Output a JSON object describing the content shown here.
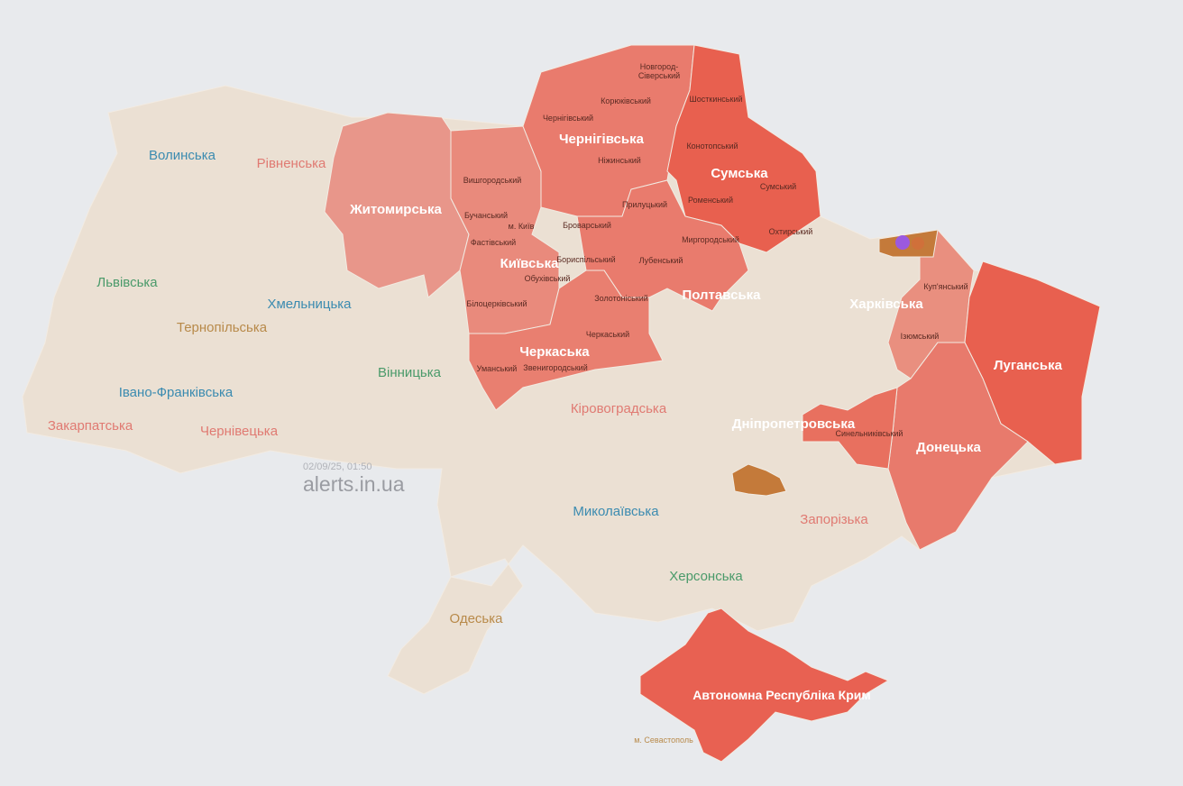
{
  "colors": {
    "background": "#e8eaed",
    "no_alert": "#ebe0d3",
    "alert_light": "#e8968a",
    "alert_medium": "#e97b6d",
    "alert_strong": "#e8604f",
    "threat_orange": "#c47a3a",
    "drone_marker": "#9b59e0"
  },
  "watermark": {
    "timestamp": "02/09/25, 01:50",
    "site": "alerts.in.ua"
  },
  "oblasts_no_alert": {
    "volynska": "Волинська",
    "rivnenska": "Рівненська",
    "lvivska": "Львівська",
    "khmelnytska": "Хмельницька",
    "ternopilska": "Тернопільська",
    "vinnytska": "Вінницька",
    "ivano_frankivska": "Івано-Франківська",
    "zakarpatska": "Закарпатська",
    "chernivetska": "Чернівецька",
    "kirovohradska": "Кіровоградська",
    "mykolaivska": "Миколаївська",
    "khersonska": "Херсонська",
    "odeska": "Одеська",
    "zaporizka": "Запорізька",
    "sevastopol": "м. Севастополь"
  },
  "oblasts_alert": {
    "zhytomyrska": "Житомирська",
    "kyivska": "Київська",
    "chernihivska": "Чернігівська",
    "sumska": "Сумська",
    "poltavska": "Полтавська",
    "cherkaska": "Черкаська",
    "kharkivska": "Харківська",
    "luhanska": "Луганська",
    "donetska": "Донецька",
    "dnipropetrovska": "Дніпропетровська",
    "crimea": "Автономна Республіка Крим"
  },
  "districts": {
    "novhorod": "Новгород-",
    "siverskyi": "Сіверський",
    "koriukivskyi": "Корюківський",
    "chernihivskyi": "Чернігівський",
    "shostkynskyi": "Шосткинський",
    "konotopskyi": "Конотопський",
    "sumskyi": "Сумський",
    "nizhynskyi": "Ніжинський",
    "vyshhorodskyi": "Вишгородський",
    "romenskyi": "Роменський",
    "prylutskyi": "Прилуцький",
    "buchanskyi": "Бучанський",
    "kyiv_city": "м. Київ",
    "brovarskyi": "Броварський",
    "okhtyrskyi": "Охтирський",
    "fastivskyi": "Фастівський",
    "myrhorodskyi": "Миргородський",
    "boryspilskyi": "Бориспільський",
    "lubenskyi": "Лубенський",
    "obukhivskyi": "Обухівський",
    "zolotoniskyi": "Золотоніський",
    "bilotserkivskyi": "Білоцерківський",
    "cherkaskyi": "Черкаський",
    "umanskyi": "Уманський",
    "zvenyhorodskyi": "Звенигородський",
    "kupianskyi": "Куп'янський",
    "iziumskyi": "Ізюмський",
    "synelnykivskyi": "Синельниківський"
  }
}
